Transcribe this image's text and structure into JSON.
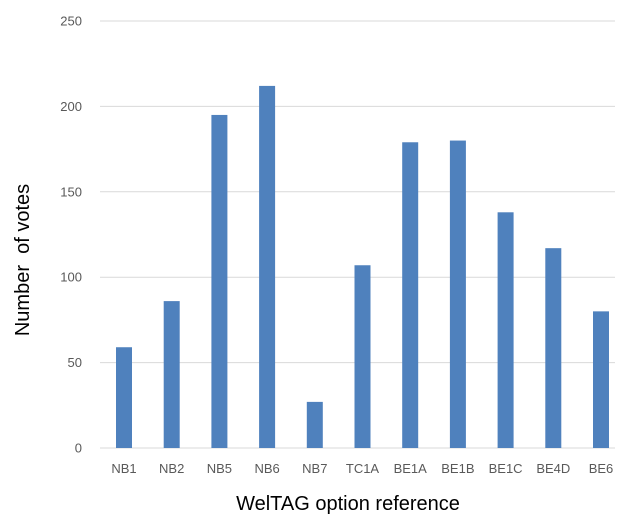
{
  "chart_data": {
    "type": "bar",
    "title": "",
    "xlabel": "WelTAG option reference",
    "ylabel": "Number  of votes",
    "categories": [
      "NB1",
      "NB2",
      "NB5",
      "NB6",
      "NB7",
      "TC1A",
      "BE1A",
      "BE1B",
      "BE1C",
      "BE4D",
      "BE6"
    ],
    "values": [
      59,
      86,
      195,
      212,
      27,
      107,
      179,
      180,
      138,
      117,
      80
    ],
    "ylim": [
      0,
      250
    ],
    "yticks": [
      0,
      50,
      100,
      150,
      200,
      250
    ],
    "grid": true,
    "legend": "none",
    "bar_color": "#4f81bd"
  }
}
